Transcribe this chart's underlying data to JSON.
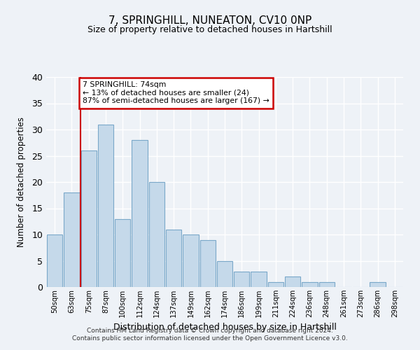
{
  "title": "7, SPRINGHILL, NUNEATON, CV10 0NP",
  "subtitle": "Size of property relative to detached houses in Hartshill",
  "xlabel": "Distribution of detached houses by size in Hartshill",
  "ylabel": "Number of detached properties",
  "bar_labels": [
    "50sqm",
    "63sqm",
    "75sqm",
    "87sqm",
    "100sqm",
    "112sqm",
    "124sqm",
    "137sqm",
    "149sqm",
    "162sqm",
    "174sqm",
    "186sqm",
    "199sqm",
    "211sqm",
    "224sqm",
    "236sqm",
    "248sqm",
    "261sqm",
    "273sqm",
    "286sqm",
    "298sqm"
  ],
  "bar_values": [
    10,
    18,
    26,
    31,
    13,
    28,
    20,
    11,
    10,
    9,
    5,
    3,
    3,
    1,
    2,
    1,
    1,
    0,
    0,
    1,
    0
  ],
  "bar_color": "#c5d9ea",
  "bar_edgecolor": "#7aa8c9",
  "marker_line_color": "#cc0000",
  "annotation_box_edgecolor": "#cc0000",
  "annotation_line1": "7 SPRINGHILL: 74sqm",
  "annotation_line2": "← 13% of detached houses are smaller (24)",
  "annotation_line3": "87% of semi-detached houses are larger (167) →",
  "ylim": [
    0,
    40
  ],
  "yticks": [
    0,
    5,
    10,
    15,
    20,
    25,
    30,
    35,
    40
  ],
  "background_color": "#eef2f7",
  "grid_color": "#ffffff",
  "footer_line1": "Contains HM Land Registry data © Crown copyright and database right 2024.",
  "footer_line2": "Contains public sector information licensed under the Open Government Licence v3.0."
}
